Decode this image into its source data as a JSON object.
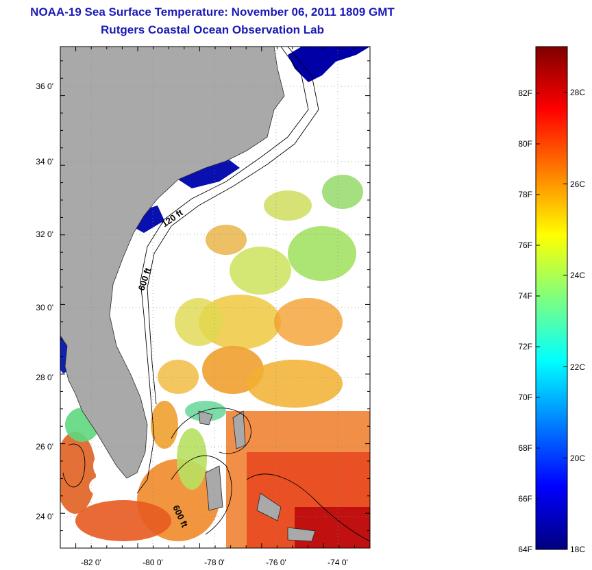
{
  "title": "NOAA-19 Sea Surface Temperature:  November 06, 2011 1809 GMT",
  "subtitle": "Rutgers Coastal Ocean Observation Lab",
  "map": {
    "lon_range": [
      -83,
      -73
    ],
    "lat_range": [
      23,
      37.1
    ],
    "x_tick_labels": [
      "-82 0'",
      "-80 0'",
      "-78 0'",
      "-76 0'",
      "-74 0'"
    ],
    "y_tick_labels": [
      "24 0'",
      "26 0'",
      "28 0'",
      "30 0'",
      "32 0'",
      "34 0'",
      "36 0'"
    ],
    "isobath_labels": [
      "120 ft",
      "600 ft",
      "600 ft"
    ],
    "land_color": "#a9a9a9",
    "grid": true
  },
  "colorbar": {
    "f_labels": [
      "82F",
      "80F",
      "78F",
      "76F",
      "74F",
      "72F",
      "70F",
      "68F",
      "66F",
      "64F"
    ],
    "c_labels": [
      "28C",
      "26C",
      "24C",
      "22C",
      "20C",
      "18C"
    ],
    "range_c": [
      18,
      29.5
    ],
    "colors": [
      "#00007f",
      "#0000ff",
      "#007fff",
      "#00ffff",
      "#7fff7f",
      "#ffff00",
      "#ff7f00",
      "#ff0000",
      "#7f0000"
    ]
  }
}
